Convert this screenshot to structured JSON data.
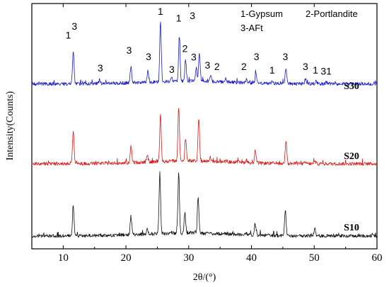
{
  "chart_data": {
    "type": "line",
    "title": "",
    "xlabel": "2θ/(°)",
    "ylabel": "Intensity(Counts)",
    "xlim": [
      5,
      60
    ],
    "x_ticks": [
      "10",
      "20",
      "30",
      "40",
      "50",
      "60"
    ],
    "y_ticks": [],
    "grid": false,
    "legend": {
      "placement": "top-right",
      "entries": [
        "1-Gypsum",
        "2-Portlandite",
        "3-AFt"
      ]
    },
    "series": [
      {
        "name": "S30",
        "color": "#1a1acc",
        "baseline_counts": 10,
        "peaks": [
          {
            "x": 11.6,
            "y": 60
          },
          {
            "x": 15.8,
            "y": 15
          },
          {
            "x": 20.8,
            "y": 34
          },
          {
            "x": 23.5,
            "y": 28
          },
          {
            "x": 25.5,
            "y": 100
          },
          {
            "x": 27.3,
            "y": 14
          },
          {
            "x": 28.5,
            "y": 78
          },
          {
            "x": 29.5,
            "y": 42
          },
          {
            "x": 31.2,
            "y": 30
          },
          {
            "x": 31.7,
            "y": 52
          },
          {
            "x": 33.5,
            "y": 18
          },
          {
            "x": 35.9,
            "y": 15
          },
          {
            "x": 39.2,
            "y": 16
          },
          {
            "x": 40.7,
            "y": 27
          },
          {
            "x": 43.3,
            "y": 12
          },
          {
            "x": 45.5,
            "y": 30
          },
          {
            "x": 48.6,
            "y": 17
          },
          {
            "x": 50.3,
            "y": 14
          },
          {
            "x": 51.9,
            "y": 13
          }
        ]
      },
      {
        "name": "S20",
        "color": "#dd1a1a",
        "baseline_counts": 10,
        "peaks": [
          {
            "x": 11.6,
            "y": 60
          },
          {
            "x": 15.8,
            "y": 10
          },
          {
            "x": 20.8,
            "y": 35
          },
          {
            "x": 23.4,
            "y": 20
          },
          {
            "x": 25.5,
            "y": 80
          },
          {
            "x": 27.3,
            "y": 12
          },
          {
            "x": 28.4,
            "y": 90
          },
          {
            "x": 29.5,
            "y": 45
          },
          {
            "x": 31.6,
            "y": 75
          },
          {
            "x": 33.4,
            "y": 15
          },
          {
            "x": 36.0,
            "y": 12
          },
          {
            "x": 39.2,
            "y": 14
          },
          {
            "x": 40.6,
            "y": 28
          },
          {
            "x": 43.2,
            "y": 10
          },
          {
            "x": 45.5,
            "y": 45
          },
          {
            "x": 48.6,
            "y": 12
          },
          {
            "x": 50.1,
            "y": 15
          },
          {
            "x": 51.8,
            "y": 10
          }
        ]
      },
      {
        "name": "S10",
        "color": "#111111",
        "baseline_counts": 10,
        "peaks": [
          {
            "x": 11.6,
            "y": 55
          },
          {
            "x": 15.8,
            "y": 10
          },
          {
            "x": 20.8,
            "y": 35
          },
          {
            "x": 23.4,
            "y": 18
          },
          {
            "x": 25.4,
            "y": 100
          },
          {
            "x": 27.2,
            "y": 12
          },
          {
            "x": 28.4,
            "y": 100
          },
          {
            "x": 29.4,
            "y": 42
          },
          {
            "x": 31.5,
            "y": 65
          },
          {
            "x": 33.3,
            "y": 12
          },
          {
            "x": 36.0,
            "y": 10
          },
          {
            "x": 39.1,
            "y": 12
          },
          {
            "x": 40.6,
            "y": 25
          },
          {
            "x": 43.2,
            "y": 10
          },
          {
            "x": 45.4,
            "y": 48
          },
          {
            "x": 48.5,
            "y": 10
          },
          {
            "x": 50.1,
            "y": 22
          },
          {
            "x": 51.8,
            "y": 10
          }
        ]
      }
    ],
    "annotations": [
      {
        "text": "1",
        "x": 10.8,
        "series": "S30",
        "level": 67
      },
      {
        "text": "3",
        "x": 11.8,
        "series": "S30",
        "level": 80
      },
      {
        "text": "3",
        "x": 15.9,
        "series": "S30",
        "level": 18
      },
      {
        "text": "3",
        "x": 20.5,
        "series": "S30",
        "level": 44
      },
      {
        "text": "3",
        "x": 23.6,
        "series": "S30",
        "level": 35
      },
      {
        "text": "1",
        "x": 25.5,
        "series": "S30",
        "level": 102
      },
      {
        "text": "3",
        "x": 27.3,
        "series": "S30",
        "level": 16
      },
      {
        "text": "1",
        "x": 28.4,
        "series": "S30",
        "level": 92
      },
      {
        "text": "3",
        "x": 30.6,
        "series": "S30",
        "level": 96
      },
      {
        "text": "2",
        "x": 29.4,
        "series": "S30",
        "level": 47
      },
      {
        "text": "3",
        "x": 30.8,
        "series": "S30",
        "level": 34
      },
      {
        "text": "3",
        "x": 33.0,
        "series": "S30",
        "level": 22
      },
      {
        "text": "2",
        "x": 34.5,
        "series": "S30",
        "level": 20
      },
      {
        "text": "2",
        "x": 38.8,
        "series": "S30",
        "level": 20
      },
      {
        "text": "3",
        "x": 40.8,
        "series": "S30",
        "level": 35
      },
      {
        "text": "1",
        "x": 43.3,
        "series": "S30",
        "level": 15
      },
      {
        "text": "3",
        "x": 45.4,
        "series": "S30",
        "level": 35
      },
      {
        "text": "3",
        "x": 48.6,
        "series": "S30",
        "level": 20
      },
      {
        "text": "1",
        "x": 50.2,
        "series": "S30",
        "level": 15
      },
      {
        "text": "31",
        "x": 51.9,
        "series": "S30",
        "level": 13
      }
    ]
  }
}
